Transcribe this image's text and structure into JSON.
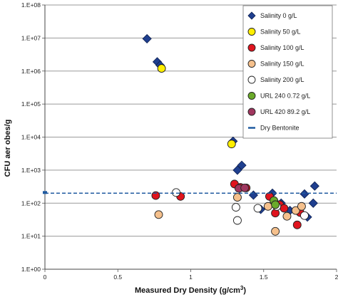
{
  "chart_data": {
    "type": "scatter",
    "title": "",
    "xlabel": "Measured Dry Density (g/cm",
    "xlabel_sup": "3",
    "xlabel_end": ")",
    "ylabel": "CFU aer obes/g",
    "xlim": [
      0,
      2
    ],
    "y_scale": "log",
    "ylim": [
      1,
      100000000
    ],
    "grid": "horizontal",
    "legend_placement": "top-right",
    "x_ticks": [
      {
        "value": 0,
        "label": "0"
      },
      {
        "value": 0.5,
        "label": "0.5"
      },
      {
        "value": 1,
        "label": "1"
      },
      {
        "value": 1.5,
        "label": "1.5"
      },
      {
        "value": 2,
        "label": "2"
      }
    ],
    "y_ticks": [
      {
        "value": 1,
        "label": "1.E+00"
      },
      {
        "value": 10,
        "label": "1.E+01"
      },
      {
        "value": 100,
        "label": "1.E+02"
      },
      {
        "value": 1000,
        "label": "1.E+03"
      },
      {
        "value": 10000,
        "label": "1.E+04"
      },
      {
        "value": 100000,
        "label": "1.E+05"
      },
      {
        "value": 1000000,
        "label": "1.E+06"
      },
      {
        "value": 10000000,
        "label": "1.E+07"
      },
      {
        "value": 100000000,
        "label": "1.E+08"
      }
    ],
    "series": [
      {
        "name": "Salinity 0 g/L",
        "marker": "diamond",
        "fill": "#1f3f8f",
        "stroke": "#0d1f50",
        "points": [
          [
            0.7,
            9500000
          ],
          [
            0.77,
            1900000
          ],
          [
            0.79,
            1500000
          ],
          [
            1.29,
            7500
          ],
          [
            1.32,
            1000
          ],
          [
            1.35,
            1400
          ],
          [
            1.43,
            175
          ],
          [
            1.48,
            65
          ],
          [
            1.56,
            200
          ],
          [
            1.62,
            100
          ],
          [
            1.68,
            60
          ],
          [
            1.78,
            190
          ],
          [
            1.8,
            38
          ],
          [
            1.84,
            100
          ],
          [
            1.85,
            330
          ]
        ]
      },
      {
        "name": "Salinity 50 g/L",
        "marker": "circle",
        "fill": "#ffee00",
        "stroke": "#222222",
        "points": [
          [
            0.8,
            1200000
          ],
          [
            1.28,
            6200
          ]
        ]
      },
      {
        "name": "Salinity 100 g/L",
        "marker": "circle",
        "fill": "#e0141e",
        "stroke": "#222222",
        "points": [
          [
            0.76,
            170
          ],
          [
            0.93,
            160
          ],
          [
            1.3,
            380
          ],
          [
            1.34,
            300
          ],
          [
            1.38,
            290
          ],
          [
            1.54,
            160
          ],
          [
            1.58,
            50
          ],
          [
            1.61,
            90
          ],
          [
            1.64,
            70
          ],
          [
            1.73,
            22
          ],
          [
            1.75,
            52
          ]
        ]
      },
      {
        "name": "Salinity 150 g/L",
        "marker": "circle",
        "fill": "#f5c08c",
        "stroke": "#222222",
        "points": [
          [
            0.78,
            45
          ],
          [
            1.32,
            150
          ],
          [
            1.53,
            80
          ],
          [
            1.58,
            14
          ],
          [
            1.66,
            40
          ],
          [
            1.72,
            60
          ],
          [
            1.76,
            80
          ]
        ]
      },
      {
        "name": "Salinity 200 g/L",
        "marker": "circle",
        "fill": "#ffffff",
        "stroke": "#222222",
        "points": [
          [
            0.9,
            210
          ],
          [
            1.31,
            75
          ],
          [
            1.32,
            30
          ],
          [
            1.46,
            70
          ],
          [
            1.59,
            80
          ],
          [
            1.78,
            42
          ]
        ]
      },
      {
        "name": "URL 240 0.72 g/L",
        "marker": "circle",
        "fill": "#6aaa2a",
        "stroke": "#222222",
        "points": [
          [
            1.57,
            120
          ],
          [
            1.58,
            90
          ]
        ]
      },
      {
        "name": "URL 420 89.2 g/L",
        "marker": "circle",
        "fill": "#a0365e",
        "stroke": "#222222",
        "points": [
          [
            1.33,
            280
          ],
          [
            1.37,
            290
          ]
        ]
      },
      {
        "name": "Dry Bentonite",
        "marker": "dash-line",
        "fill": "#1f5aa0",
        "stroke": "#1f5aa0",
        "line_y": 200,
        "point": [
          0,
          210
        ]
      }
    ]
  }
}
